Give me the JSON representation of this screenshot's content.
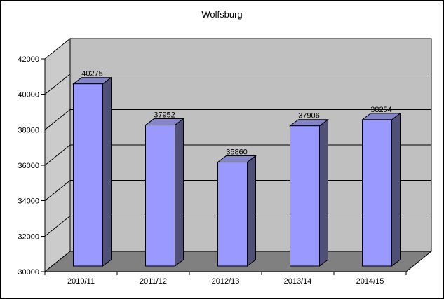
{
  "title": "Wolfsburg",
  "chart_data": {
    "type": "bar",
    "style": "3d-column",
    "title": "Wolfsburg",
    "categories": [
      "2010/11",
      "2011/12",
      "2012/13",
      "2013/14",
      "2014/15"
    ],
    "values": [
      40275,
      37952,
      35860,
      37906,
      38254
    ],
    "data_labels": [
      "40275",
      "37952",
      "35860",
      "37906",
      "38254"
    ],
    "yticks": [
      30000,
      32000,
      34000,
      36000,
      38000,
      40000,
      42000
    ],
    "ylim": [
      30000,
      42000
    ],
    "grid": true,
    "legend": "none",
    "colors": {
      "bar_front": "#9999FF",
      "bar_top": "#8484C8",
      "bar_side": "#4F4F78",
      "back_wall": "#C0C0C0",
      "side_wall": "#CBCBCB",
      "floor": "#808080",
      "line": "#000000",
      "text": "#000000",
      "background": "#FFFFFF"
    }
  }
}
